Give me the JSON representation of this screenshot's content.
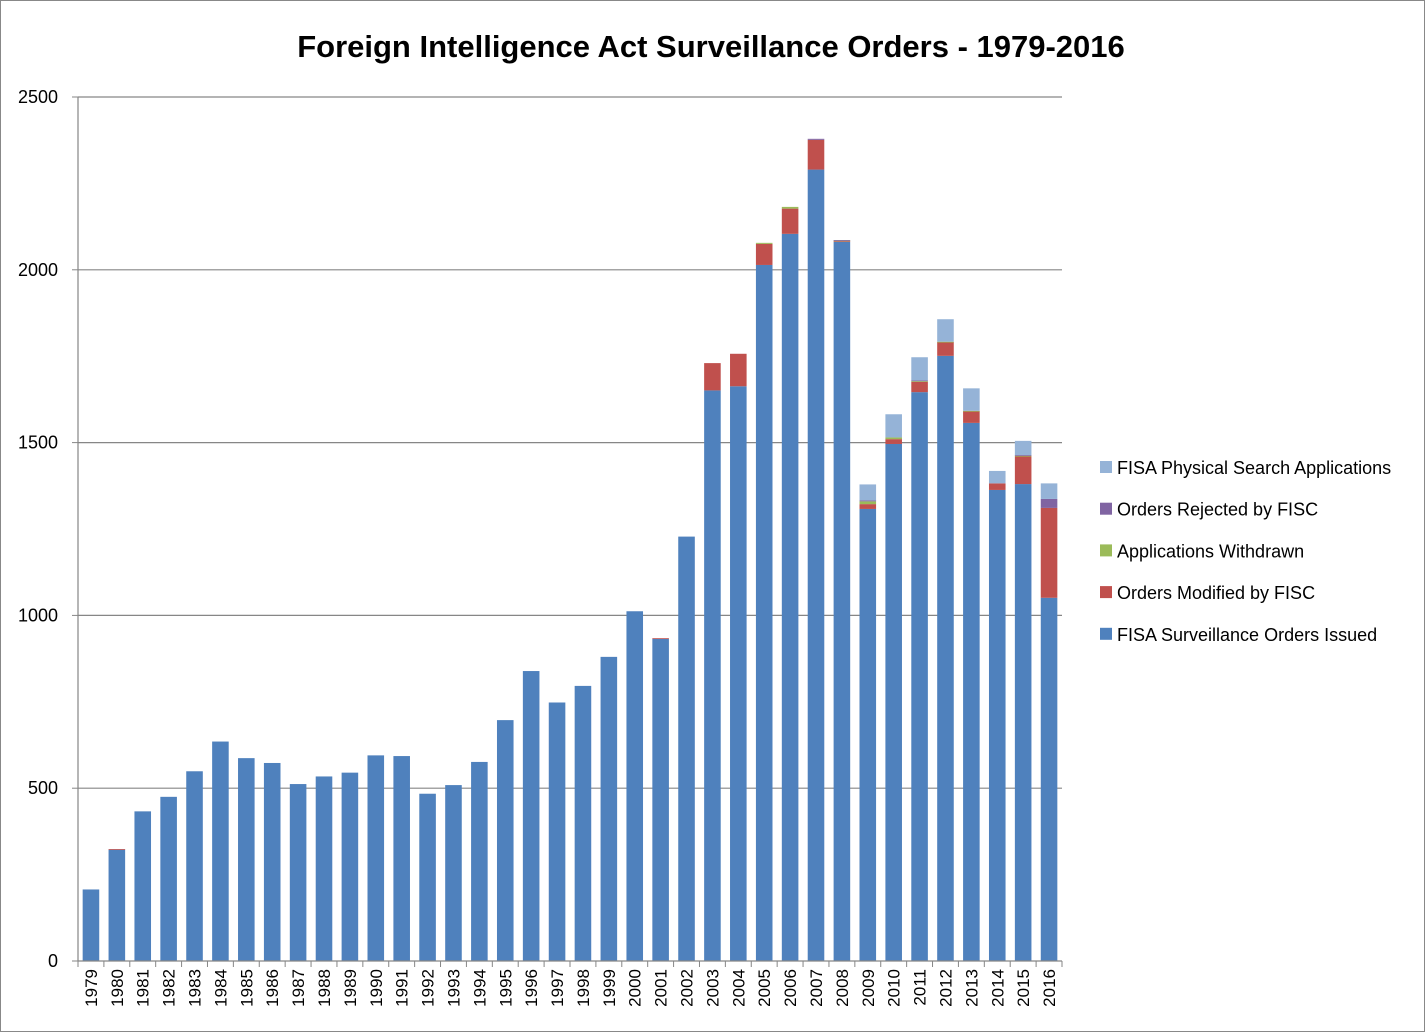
{
  "chart_data": {
    "type": "bar",
    "stacked": true,
    "title": "Foreign Intelligence Act Surveillance Orders - 1979-2016",
    "xlabel": "",
    "ylabel": "",
    "ylim": [
      0,
      2500
    ],
    "yticks": [
      0,
      500,
      1000,
      1500,
      2000,
      2500
    ],
    "grid": true,
    "legend_position": "right",
    "categories": [
      "1979",
      "1980",
      "1981",
      "1982",
      "1983",
      "1984",
      "1985",
      "1986",
      "1987",
      "1988",
      "1989",
      "1990",
      "1991",
      "1992",
      "1993",
      "1994",
      "1995",
      "1996",
      "1997",
      "1998",
      "1999",
      "2000",
      "2001",
      "2002",
      "2003",
      "2004",
      "2005",
      "2006",
      "2007",
      "2008",
      "2009",
      "2010",
      "2011",
      "2012",
      "2013",
      "2014",
      "2015",
      "2016"
    ],
    "series": [
      {
        "name": "FISA Surveillance Orders Issued",
        "color": "#4F81BD",
        "values": [
          207,
          322,
          433,
          475,
          549,
          635,
          587,
          573,
          512,
          534,
          545,
          595,
          593,
          484,
          509,
          576,
          697,
          839,
          748,
          796,
          880,
          1012,
          932,
          1228,
          1651,
          1663,
          2014,
          2104,
          2290,
          2081,
          1308,
          1496,
          1646,
          1751,
          1557,
          1363,
          1380,
          1051
        ]
      },
      {
        "name": "Orders Modified by FISC",
        "color": "#C0504D",
        "values": [
          0,
          2,
          0,
          0,
          0,
          0,
          0,
          0,
          0,
          0,
          0,
          0,
          0,
          0,
          0,
          0,
          0,
          0,
          0,
          0,
          0,
          0,
          2,
          0,
          79,
          94,
          61,
          73,
          86,
          2,
          14,
          14,
          30,
          40,
          34,
          19,
          80,
          260
        ]
      },
      {
        "name": "Applications Withdrawn",
        "color": "#9BBB59",
        "values": [
          0,
          0,
          0,
          0,
          0,
          0,
          0,
          0,
          0,
          0,
          0,
          0,
          0,
          0,
          0,
          0,
          0,
          0,
          0,
          0,
          0,
          0,
          0,
          0,
          0,
          0,
          3,
          5,
          0,
          2,
          8,
          5,
          2,
          1,
          1,
          0,
          2,
          0
        ]
      },
      {
        "name": "Orders Rejected by FISC",
        "color": "#8064A2",
        "values": [
          0,
          0,
          0,
          0,
          0,
          0,
          0,
          0,
          0,
          0,
          0,
          0,
          0,
          0,
          0,
          0,
          0,
          0,
          0,
          0,
          0,
          0,
          0,
          0,
          0,
          0,
          0,
          0,
          3,
          1,
          3,
          0,
          2,
          0,
          0,
          0,
          2,
          26
        ]
      },
      {
        "name": "FISA Physical Search Applications",
        "color": "#95B3D7",
        "values": [
          0,
          0,
          0,
          0,
          0,
          0,
          0,
          0,
          0,
          0,
          0,
          0,
          0,
          0,
          0,
          0,
          0,
          0,
          0,
          0,
          0,
          0,
          0,
          0,
          0,
          0,
          0,
          0,
          0,
          0,
          46,
          67,
          67,
          65,
          65,
          36,
          41,
          45
        ]
      }
    ]
  }
}
